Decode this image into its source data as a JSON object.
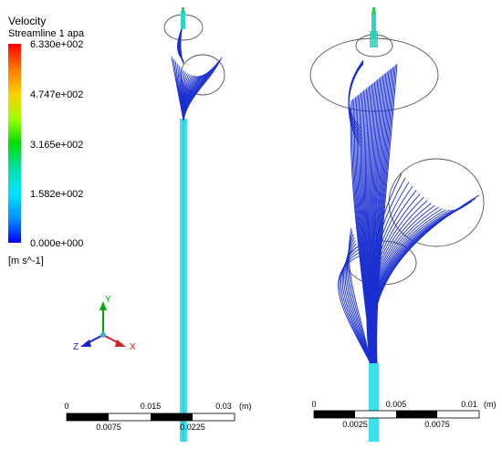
{
  "legend": {
    "title": "Velocity",
    "subtitle": "Streamline 1 apa",
    "ticks": [
      "6.330e+002",
      "4.747e+002",
      "3.165e+002",
      "1.582e+002",
      "0.000e+000"
    ],
    "unit": "[m s^-1]",
    "colors": [
      "#ff0000",
      "#ffcc00",
      "#00dd00",
      "#00e5ff",
      "#0000ff"
    ]
  },
  "axes": {
    "x": "X",
    "y": "Y",
    "z": "Z"
  },
  "scale_left": {
    "top_labels": [
      "0",
      "0.015",
      "0.03"
    ],
    "bottom_labels": [
      "0.0075",
      "0.0225"
    ],
    "unit": "(m)"
  },
  "scale_right": {
    "top_labels": [
      "0",
      "0.005",
      "0.01"
    ],
    "bottom_labels": [
      "0.0025",
      "0.0075"
    ],
    "unit": "(m)"
  },
  "colors": {
    "streamline": "#1a2fd0",
    "tube": "#3fe0ee",
    "outline": "#555555"
  }
}
